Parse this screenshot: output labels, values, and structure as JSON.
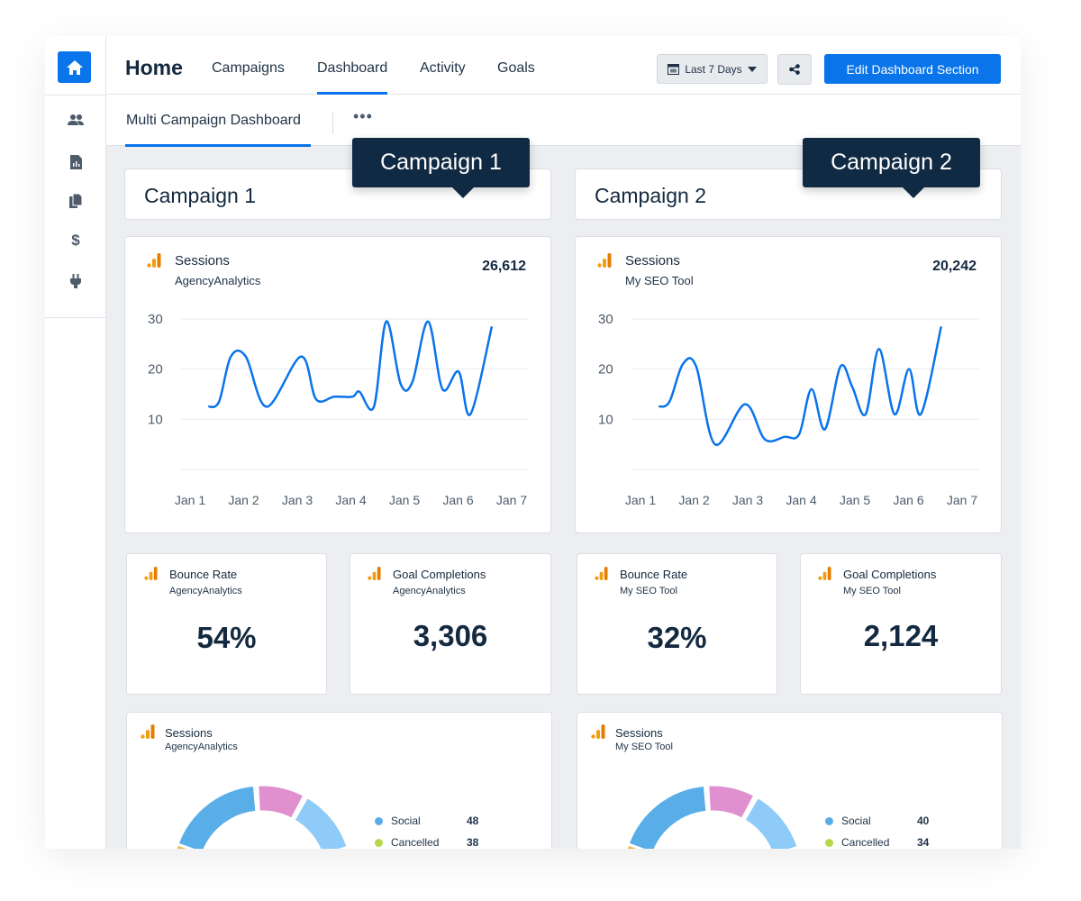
{
  "sidebar": {
    "items": [
      {
        "icon": "home-icon"
      },
      {
        "icon": "users-icon"
      },
      {
        "icon": "report-icon"
      },
      {
        "icon": "documents-icon"
      },
      {
        "icon": "dollar-icon",
        "glyph": "$"
      },
      {
        "icon": "plug-icon"
      }
    ]
  },
  "header": {
    "title": "Home",
    "tabs": [
      {
        "label": "Campaigns"
      },
      {
        "label": "Dashboard",
        "active": true
      },
      {
        "label": "Activity"
      },
      {
        "label": "Goals"
      }
    ],
    "date_range": "Last 7 Days",
    "edit_button": "Edit Dashboard Section"
  },
  "subnav": {
    "tab": "Multi Campaign Dashboard",
    "more": "•••"
  },
  "colors": {
    "accent": "#0a74ea",
    "tooltip": "#102a43",
    "line": "#0a74ea",
    "ga_orange": "#f39c12"
  },
  "campaigns": [
    {
      "tooltip": "Campaign 1",
      "title": "Campaign 1",
      "sessions": {
        "name": "Sessions",
        "source": "AgencyAnalytics",
        "total": "26,612"
      },
      "metrics": [
        {
          "name": "Bounce Rate",
          "source": "AgencyAnalytics",
          "value": "54%"
        },
        {
          "name": "Goal Completions",
          "source": "AgencyAnalytics",
          "value": "3,306"
        }
      ],
      "donut": {
        "name": "Sessions",
        "source": "AgencyAnalytics",
        "legend": [
          {
            "label": "Social",
            "value": "48",
            "color": "#5aaee8"
          },
          {
            "label": "Cancelled",
            "value": "38",
            "color": "#b5d94a"
          }
        ]
      }
    },
    {
      "tooltip": "Campaign 2",
      "title": "Campaign 2",
      "sessions": {
        "name": "Sessions",
        "source": "My SEO Tool",
        "total": "20,242"
      },
      "metrics": [
        {
          "name": "Bounce Rate",
          "source": "My SEO Tool",
          "value": "32%"
        },
        {
          "name": "Goal Completions",
          "source": "My SEO Tool",
          "value": "2,124"
        }
      ],
      "donut": {
        "name": "Sessions",
        "source": "My SEO Tool",
        "legend": [
          {
            "label": "Social",
            "value": "40",
            "color": "#5aaee8"
          },
          {
            "label": "Cancelled",
            "value": "34",
            "color": "#b5d94a"
          }
        ]
      }
    }
  ],
  "chart_data": [
    {
      "type": "line",
      "x_ticks": [
        "Jan 1",
        "Jan 2",
        "Jan 3",
        "Jan 4",
        "Jan 5",
        "Jan 6",
        "Jan 7"
      ],
      "y_ticks": [
        10,
        20,
        30
      ],
      "ylim": [
        0,
        30
      ],
      "grid": true,
      "x": [
        1.34,
        1.54,
        1.76,
        2.04,
        2.43,
        3.07,
        3.35,
        3.69,
        4.03,
        4.16,
        4.43,
        4.66,
        4.93,
        5.15,
        5.44,
        5.71,
        6.01,
        6.23,
        6.63
      ],
      "y": [
        12.5,
        13.5,
        22.5,
        22.5,
        12.5,
        22.5,
        14,
        14.5,
        14.5,
        15.5,
        12.5,
        29.5,
        17,
        17.5,
        29.5,
        16,
        19.5,
        11,
        28.5
      ]
    },
    {
      "type": "line",
      "x_ticks": [
        "Jan 1",
        "Jan 2",
        "Jan 3",
        "Jan 4",
        "Jan 5",
        "Jan 6",
        "Jan 7"
      ],
      "y_ticks": [
        10,
        20,
        30
      ],
      "ylim": [
        0,
        30
      ],
      "grid": true,
      "x": [
        1.34,
        1.54,
        1.79,
        2.04,
        2.39,
        2.95,
        3.32,
        3.69,
        3.96,
        4.19,
        4.44,
        4.73,
        4.95,
        5.2,
        5.45,
        5.74,
        6.01,
        6.23,
        6.61
      ],
      "y": [
        12.5,
        13.5,
        21,
        20.5,
        5,
        13,
        6,
        6.5,
        7,
        16,
        8,
        20.5,
        16.5,
        11,
        24,
        11,
        20,
        11,
        28.5
      ]
    }
  ]
}
